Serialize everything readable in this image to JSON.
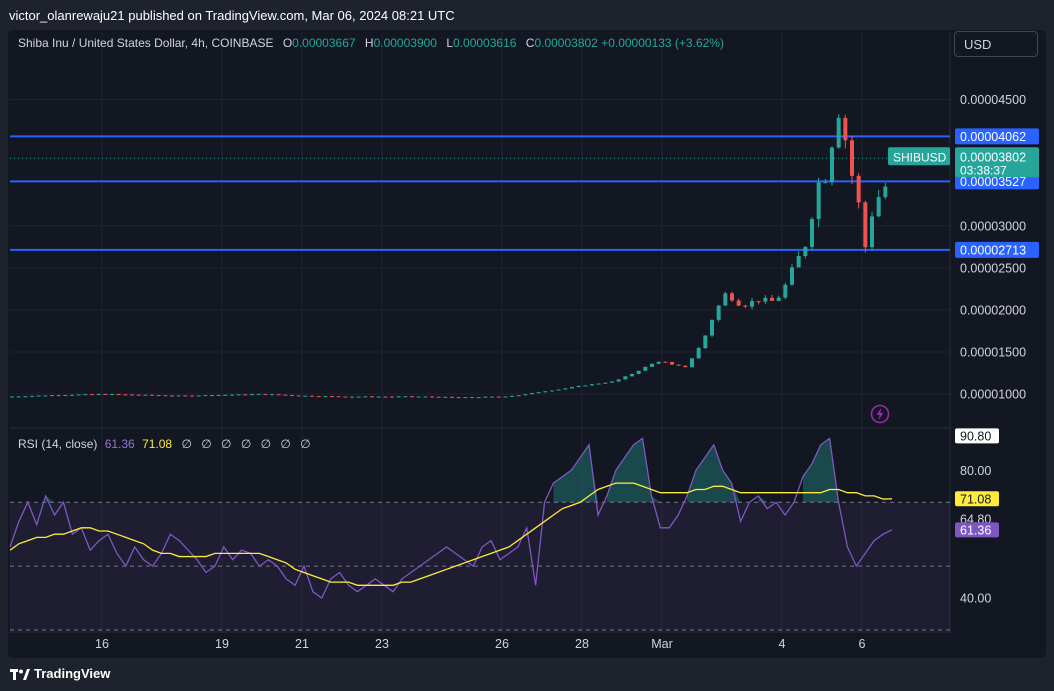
{
  "header": {
    "publisher_text": "victor_olanrewaju21 published on TradingView.com, Mar 06, 2024 08:21 UTC"
  },
  "legend": {
    "symbol": "Shiba Inu / United States Dollar, 4h, COINBASE",
    "o_label": "O",
    "o_value": "0.00003667",
    "h_label": "H",
    "h_value": "0.00003900",
    "l_label": "L",
    "l_value": "0.00003616",
    "c_label": "C",
    "c_value": "0.00003802",
    "change": "+0.00000133 (+3.62%)"
  },
  "currency_button": "USD",
  "rsi_legend": {
    "title": "RSI (14, close)",
    "rsi_value": "61.36",
    "ma_value": "71.08",
    "null_marks": "∅ ∅ ∅ ∅ ∅ ∅ ∅"
  },
  "footer": {
    "brand": "TradingView"
  },
  "colors": {
    "up": "#26a69a",
    "down": "#ef5350",
    "level_line": "#2962ff",
    "rsi_line": "#7e57c2",
    "rsi_ma": "#ffeb3b",
    "background": "#131722"
  },
  "chart_data": [
    {
      "type": "candlestick",
      "symbol_label": "SHIBUSD",
      "last_price": "0.00003802",
      "countdown": "03:38:37",
      "y_ticks": [
        "0.00004500",
        "0.00003000",
        "0.00002500",
        "0.00002000",
        "0.00001500",
        "0.00001000"
      ],
      "y_tick_values": [
        4.5e-05,
        3e-05,
        2.5e-05,
        2e-05,
        1.5e-05,
        1e-05
      ],
      "ylim": [
        6.2e-06,
        4.97e-05
      ],
      "x_ticks": [
        "16",
        "19",
        "21",
        "23",
        "26",
        "28",
        "Mar",
        "4",
        "6"
      ],
      "x_tick_days": [
        16,
        19,
        21,
        23,
        26,
        28,
        30,
        33,
        35
      ],
      "xlim_days": [
        13.7,
        37.2
      ],
      "horizontal_levels": [
        {
          "label": "0.00004062",
          "value": 4.062e-05
        },
        {
          "label": "0.00003527",
          "value": 3.527e-05
        },
        {
          "label": "0.00002713",
          "value": 2.713e-05
        }
      ],
      "candle_anchors": [
        [
          13.7,
          9.7e-06
        ],
        [
          15.0,
          9.9e-06
        ],
        [
          16.0,
          1e-05
        ],
        [
          17.0,
          9.9e-06
        ],
        [
          18.0,
          9.8e-06
        ],
        [
          19.0,
          9.9e-06
        ],
        [
          20.0,
          1e-05
        ],
        [
          21.0,
          9.8e-06
        ],
        [
          22.0,
          9.7e-06
        ],
        [
          23.0,
          9.7e-06
        ],
        [
          24.0,
          9.7e-06
        ],
        [
          25.0,
          9.6e-06
        ],
        [
          26.0,
          9.7e-06
        ],
        [
          26.5,
          9.9e-06
        ],
        [
          27.0,
          1.03e-05
        ],
        [
          27.5,
          1.06e-05
        ],
        [
          28.0,
          1.1e-05
        ],
        [
          28.8,
          1.15e-05
        ],
        [
          29.3,
          1.25e-05
        ],
        [
          29.7,
          1.35e-05
        ],
        [
          30.0,
          1.4e-05
        ],
        [
          30.2,
          1.35e-05
        ],
        [
          30.6,
          1.32e-05
        ],
        [
          31.0,
          1.6e-05
        ],
        [
          31.3,
          1.95e-05
        ],
        [
          31.6,
          2.2e-05
        ],
        [
          32.0,
          2.05e-05
        ],
        [
          32.4,
          2.12e-05
        ],
        [
          32.8,
          2.1e-05
        ],
        [
          33.0,
          2.2e-05
        ],
        [
          33.3,
          2.5e-05
        ],
        [
          33.6,
          2.8e-05
        ],
        [
          33.9,
          3.5e-05
        ],
        [
          34.1,
          3.6e-05
        ],
        [
          34.25,
          4e-05
        ],
        [
          34.4,
          4.4e-05
        ],
        [
          34.6,
          4e-05
        ],
        [
          34.75,
          3.6e-05
        ],
        [
          34.9,
          3.3e-05
        ],
        [
          35.1,
          2.7e-05
        ],
        [
          35.3,
          3.3e-05
        ],
        [
          35.55,
          3.4e-05
        ],
        [
          35.75,
          3.8e-05
        ]
      ]
    },
    {
      "type": "line",
      "indicator": "RSI",
      "y_ticks": [
        "80.00",
        "40.00"
      ],
      "y_tick_values": [
        80,
        40
      ],
      "ylim": [
        30,
        92
      ],
      "band_levels": [
        70,
        50,
        30
      ],
      "current_labels": {
        "upper_band": "90.80",
        "ma": "71.08",
        "band_mid": "64.80",
        "rsi": "61.36"
      },
      "current_values": {
        "upper_band": 90.8,
        "ma": 71.08,
        "band_mid": 64.8,
        "rsi": 61.36
      },
      "series": [
        {
          "values": [
            56,
            64,
            70,
            63,
            72,
            66,
            70,
            60,
            62,
            55,
            58,
            60,
            54,
            50,
            56,
            52,
            50,
            54,
            60,
            58,
            55,
            52,
            48,
            50,
            56,
            52,
            55,
            54,
            50,
            52,
            50,
            46,
            44,
            50,
            42,
            40,
            46,
            48,
            44,
            42,
            44,
            46,
            44,
            42,
            46,
            48,
            50,
            52,
            54,
            56,
            54,
            52,
            50,
            56,
            58,
            52,
            54,
            56,
            62,
            44,
            70,
            76,
            78,
            80,
            84,
            88,
            66,
            72,
            80,
            84,
            88,
            90,
            72,
            62,
            62,
            66,
            72,
            80,
            84,
            88,
            80,
            76,
            64,
            70,
            72,
            68,
            70,
            66,
            70,
            78,
            82,
            88,
            90,
            70,
            56,
            50,
            54,
            58,
            60,
            61.36
          ]
        },
        {
          "values": [
            55,
            57,
            58,
            59,
            59,
            60,
            60,
            61,
            62,
            62,
            61,
            61,
            60,
            59,
            58,
            57,
            55,
            54,
            54,
            53,
            53,
            53,
            53,
            54,
            54,
            54,
            54,
            54,
            54,
            53,
            52,
            51,
            49,
            48,
            47,
            46,
            45,
            45,
            45,
            44,
            44,
            44,
            44,
            44,
            45,
            45,
            46,
            47,
            48,
            49,
            50,
            51,
            52,
            53,
            54,
            55,
            56,
            58,
            60,
            62,
            64,
            66,
            68,
            69,
            70,
            72,
            74,
            75,
            76,
            76,
            76,
            75,
            74,
            73,
            73,
            73,
            73,
            74,
            74,
            75,
            75,
            74,
            73,
            73,
            73,
            73,
            73,
            73,
            73,
            73,
            73,
            73,
            74,
            74,
            73,
            73,
            72,
            72,
            71,
            71.08
          ]
        }
      ]
    }
  ]
}
